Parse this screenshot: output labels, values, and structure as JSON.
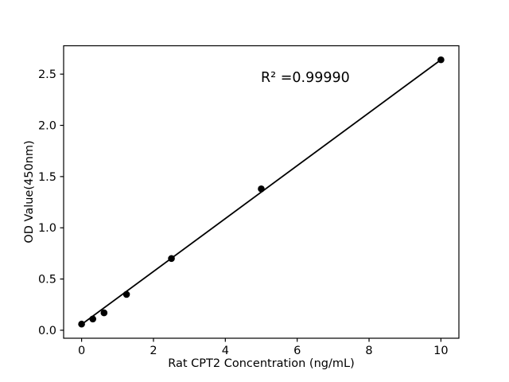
{
  "chart_data": {
    "type": "scatter",
    "title": "",
    "xlabel": "Rat CPT2 Concentration (ng/mL)",
    "ylabel": "OD Value(450nm)",
    "annotation": "R² =0.99990",
    "x": [
      0,
      0.3125,
      0.625,
      1.25,
      2.5,
      5,
      10
    ],
    "y": [
      0.06,
      0.11,
      0.17,
      0.35,
      0.7,
      1.38,
      2.64
    ],
    "fit_line": {
      "x1": 0,
      "y1": 0.057,
      "x2": 10,
      "y2": 2.64
    },
    "xlim": [
      -0.5,
      10.5
    ],
    "ylim": [
      -0.078,
      2.777
    ],
    "xticks": [
      0,
      2,
      4,
      6,
      8,
      10
    ],
    "xtick_labels": [
      "0",
      "2",
      "4",
      "6",
      "8",
      "10"
    ],
    "yticks": [
      0,
      0.5,
      1.0,
      1.5,
      2.0,
      2.5
    ],
    "ytick_labels": [
      "0.0",
      "0.5",
      "1.0",
      "1.5",
      "2.0",
      "2.5"
    ],
    "grid": false,
    "legend": null,
    "background_color": "#ffffff",
    "axis_color": "#000000",
    "marker_color": "#000000",
    "line_color": "#000000"
  }
}
